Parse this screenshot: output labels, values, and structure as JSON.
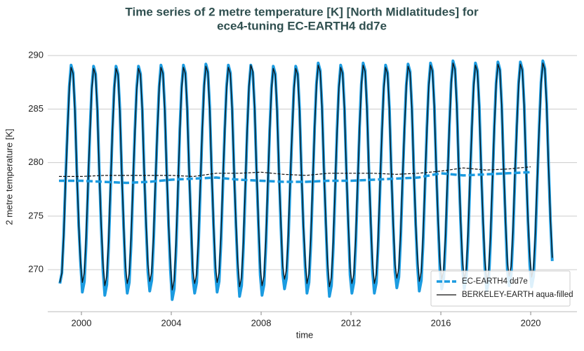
{
  "chart_data": {
    "type": "line",
    "title": [
      "Time series of 2 metre temperature [K] [North Midlatitudes] for",
      "ece4-tuning EC-EARTH4 dd7e"
    ],
    "xlabel": "time",
    "ylabel": "2 metre temperature [K]",
    "xlim": [
      1998.5,
      2022.06
    ],
    "ylim": [
      266.07,
      291.25
    ],
    "xticks": [
      2000,
      2004,
      2008,
      2012,
      2016,
      2020
    ],
    "yticks": [
      270,
      275,
      280,
      285,
      290
    ],
    "grid": true,
    "legend": "lower right",
    "x": [
      1999.04,
      1999.13,
      1999.21,
      1999.29,
      1999.38,
      1999.46,
      1999.54,
      1999.63,
      1999.71,
      1999.79,
      1999.88,
      1999.96,
      2000.04,
      2000.13,
      2000.21,
      2000.29,
      2000.38,
      2000.46,
      2000.54,
      2000.63,
      2000.71,
      2000.79,
      2000.88,
      2000.96,
      2001.04,
      2001.13,
      2001.21,
      2001.29,
      2001.38,
      2001.46,
      2001.54,
      2001.63,
      2001.71,
      2001.79,
      2001.88,
      2001.96,
      2002.04,
      2002.13,
      2002.21,
      2002.29,
      2002.38,
      2002.46,
      2002.54,
      2002.63,
      2002.71,
      2002.79,
      2002.88,
      2002.96,
      2003.04,
      2003.13,
      2003.21,
      2003.29,
      2003.38,
      2003.46,
      2003.54,
      2003.63,
      2003.71,
      2003.79,
      2003.88,
      2003.96,
      2004.04,
      2004.13,
      2004.21,
      2004.29,
      2004.38,
      2004.46,
      2004.54,
      2004.63,
      2004.71,
      2004.79,
      2004.88,
      2004.96,
      2005.04,
      2005.13,
      2005.21,
      2005.29,
      2005.38,
      2005.46,
      2005.54,
      2005.63,
      2005.71,
      2005.79,
      2005.88,
      2005.96,
      2006.04,
      2006.13,
      2006.21,
      2006.29,
      2006.38,
      2006.46,
      2006.54,
      2006.63,
      2006.71,
      2006.79,
      2006.88,
      2006.96,
      2007.04,
      2007.13,
      2007.21,
      2007.29,
      2007.38,
      2007.46,
      2007.54,
      2007.63,
      2007.71,
      2007.79,
      2007.88,
      2007.96,
      2008.04,
      2008.13,
      2008.21,
      2008.29,
      2008.38,
      2008.46,
      2008.54,
      2008.63,
      2008.71,
      2008.79,
      2008.88,
      2008.96,
      2009.04,
      2009.13,
      2009.21,
      2009.29,
      2009.38,
      2009.46,
      2009.54,
      2009.63,
      2009.71,
      2009.79,
      2009.88,
      2009.96,
      2010.04,
      2010.13,
      2010.21,
      2010.29,
      2010.38,
      2010.46,
      2010.54,
      2010.63,
      2010.71,
      2010.79,
      2010.88,
      2010.96,
      2011.04,
      2011.13,
      2011.21,
      2011.29,
      2011.38,
      2011.46,
      2011.54,
      2011.63,
      2011.71,
      2011.79,
      2011.88,
      2011.96,
      2012.04,
      2012.13,
      2012.21,
      2012.29,
      2012.38,
      2012.46,
      2012.54,
      2012.63,
      2012.71,
      2012.79,
      2012.88,
      2012.96,
      2013.04,
      2013.13,
      2013.21,
      2013.29,
      2013.38,
      2013.46,
      2013.54,
      2013.63,
      2013.71,
      2013.79,
      2013.88,
      2013.96,
      2014.04,
      2014.13,
      2014.21,
      2014.29,
      2014.38,
      2014.46,
      2014.54,
      2014.63,
      2014.71,
      2014.79,
      2014.88,
      2014.96,
      2015.04,
      2015.13,
      2015.21,
      2015.29,
      2015.38,
      2015.46,
      2015.54,
      2015.63,
      2015.71,
      2015.79,
      2015.88,
      2015.96,
      2016.04,
      2016.13,
      2016.21,
      2016.29,
      2016.38,
      2016.46,
      2016.54,
      2016.63,
      2016.71,
      2016.79,
      2016.88,
      2016.96,
      2017.04,
      2017.13,
      2017.21,
      2017.29,
      2017.38,
      2017.46,
      2017.54,
      2017.63,
      2017.71,
      2017.79,
      2017.88,
      2017.96,
      2018.04,
      2018.13,
      2018.21,
      2018.29,
      2018.38,
      2018.46,
      2018.54,
      2018.63,
      2018.71,
      2018.79,
      2018.88,
      2018.96,
      2019.04,
      2019.13,
      2019.21,
      2019.29,
      2019.38,
      2019.46,
      2019.54,
      2019.63,
      2019.71,
      2019.79,
      2019.88,
      2019.96,
      2020.04,
      2020.13,
      2020.21,
      2020.29,
      2020.38,
      2020.46,
      2020.54,
      2020.63,
      2020.71,
      2020.79,
      2020.88,
      2020.96
    ],
    "series": [
      {
        "name": "EC-EARTH4 dd7e",
        "color": "#1b9be0",
        "width": 4,
        "dash": true,
        "values": [
          268.7,
          269.7,
          273.2,
          278.2,
          283.1,
          287.1,
          289.1,
          288.4,
          285.1,
          279.6,
          274.1,
          270.7,
          267.9,
          268.9,
          272.4,
          277.4,
          283.0,
          287.0,
          289.0,
          288.3,
          285.0,
          279.5,
          274.0,
          269.9,
          267.6,
          268.6,
          272.1,
          277.1,
          283.0,
          287.0,
          289.0,
          288.3,
          285.0,
          279.5,
          274.0,
          269.6,
          267.8,
          268.8,
          272.3,
          277.3,
          283.0,
          287.0,
          289.0,
          288.3,
          285.0,
          279.5,
          274.0,
          269.8,
          268.0,
          269.0,
          272.5,
          277.5,
          283.1,
          287.1,
          289.1,
          288.4,
          285.1,
          279.6,
          274.1,
          270.0,
          267.2,
          268.2,
          271.7,
          276.7,
          283.1,
          287.1,
          289.1,
          288.4,
          285.1,
          279.6,
          274.1,
          269.2,
          267.8,
          268.8,
          272.3,
          277.3,
          283.2,
          287.2,
          289.2,
          288.5,
          285.2,
          279.7,
          274.2,
          269.8,
          267.9,
          268.9,
          272.4,
          277.4,
          283.1,
          287.1,
          289.1,
          288.4,
          285.1,
          279.6,
          274.1,
          269.9,
          267.5,
          268.5,
          272.0,
          277.0,
          283.1,
          287.1,
          289.1,
          288.4,
          285.1,
          279.6,
          274.1,
          269.5,
          267.6,
          268.6,
          272.1,
          277.1,
          283.0,
          287.0,
          289.0,
          288.3,
          285.0,
          279.5,
          274.0,
          269.6,
          268.2,
          269.2,
          272.7,
          277.7,
          283.0,
          287.0,
          289.0,
          288.3,
          285.0,
          279.5,
          274.0,
          270.2,
          267.8,
          268.8,
          272.3,
          277.3,
          283.3,
          287.3,
          289.3,
          288.6,
          285.3,
          279.8,
          274.3,
          269.8,
          267.5,
          268.5,
          272.0,
          277.0,
          283.1,
          287.1,
          289.1,
          288.4,
          285.1,
          279.6,
          274.1,
          269.5,
          267.8,
          268.8,
          272.3,
          277.3,
          283.3,
          287.3,
          289.3,
          288.6,
          285.3,
          279.8,
          274.3,
          269.8,
          267.8,
          268.8,
          272.3,
          277.3,
          283.1,
          287.1,
          289.1,
          288.4,
          285.1,
          279.6,
          274.1,
          269.8,
          268.3,
          269.3,
          272.8,
          277.8,
          283.2,
          287.2,
          289.2,
          288.5,
          285.2,
          279.7,
          274.2,
          270.3,
          268.0,
          269.0,
          272.5,
          277.5,
          283.3,
          287.3,
          289.3,
          288.6,
          285.3,
          279.8,
          274.3,
          270.0,
          268.2,
          269.2,
          272.7,
          277.7,
          283.5,
          287.5,
          289.5,
          288.8,
          285.5,
          280.0,
          274.5,
          270.2,
          268.2,
          269.2,
          272.7,
          277.7,
          283.3,
          287.3,
          289.3,
          288.6,
          285.3,
          279.8,
          274.3,
          270.2,
          268.0,
          269.0,
          272.5,
          277.5,
          283.4,
          287.4,
          289.4,
          288.7,
          285.4,
          279.9,
          274.4,
          270.0,
          268.5,
          269.5,
          273.0,
          278.0,
          283.4,
          287.4,
          289.4,
          288.7,
          285.4,
          279.9,
          274.4,
          270.5,
          268.4,
          269.4,
          272.9,
          277.9,
          283.5,
          287.5,
          289.5,
          288.8,
          285.5,
          280.0,
          274.5,
          270.8
        ]
      },
      {
        "name": "BERKELEY-EARTH aqua-filled",
        "color": "#111111",
        "width": 1.3,
        "values": [
          268.8,
          269.7,
          273.1,
          278.0,
          282.9,
          286.9,
          288.9,
          288.3,
          284.9,
          279.4,
          274.3,
          270.6,
          268.8,
          269.7,
          273.1,
          278.0,
          282.8,
          286.8,
          288.8,
          288.2,
          284.8,
          279.3,
          274.2,
          270.6,
          268.5,
          269.4,
          272.8,
          277.7,
          282.8,
          286.8,
          288.8,
          288.2,
          284.8,
          279.3,
          274.2,
          270.3,
          268.7,
          269.6,
          273.0,
          277.9,
          282.8,
          286.8,
          288.8,
          288.2,
          284.8,
          279.3,
          274.2,
          270.5,
          268.9,
          269.8,
          273.2,
          278.1,
          282.9,
          286.9,
          288.9,
          288.3,
          284.9,
          279.4,
          274.3,
          270.7,
          268.1,
          269.0,
          272.4,
          277.3,
          282.9,
          286.9,
          288.9,
          288.3,
          284.9,
          279.4,
          274.3,
          269.9,
          268.7,
          269.6,
          273.0,
          277.9,
          283.0,
          287.0,
          289.0,
          288.4,
          285.0,
          279.5,
          274.4,
          270.5,
          268.8,
          269.7,
          273.1,
          278.0,
          282.9,
          286.9,
          288.9,
          288.3,
          284.9,
          279.4,
          274.3,
          270.6,
          268.4,
          269.3,
          272.7,
          277.6,
          283.1,
          287.1,
          289.1,
          288.5,
          285.1,
          279.6,
          274.5,
          270.2,
          268.5,
          269.4,
          272.8,
          277.7,
          282.8,
          286.8,
          288.8,
          288.2,
          284.8,
          279.3,
          274.2,
          270.3,
          269.1,
          270.0,
          273.4,
          278.3,
          282.8,
          286.8,
          288.8,
          288.2,
          284.8,
          279.3,
          274.2,
          270.9,
          268.7,
          269.6,
          273.0,
          277.9,
          283.1,
          287.1,
          289.1,
          288.5,
          285.1,
          279.6,
          274.5,
          270.5,
          268.4,
          269.3,
          272.7,
          277.6,
          282.9,
          286.9,
          288.9,
          288.3,
          284.9,
          279.4,
          274.3,
          270.2,
          268.7,
          269.6,
          273.0,
          277.9,
          283.1,
          287.1,
          289.1,
          288.5,
          285.1,
          279.6,
          274.5,
          270.5,
          268.7,
          269.6,
          273.0,
          277.9,
          282.9,
          286.9,
          288.9,
          288.3,
          284.9,
          279.4,
          274.3,
          270.5,
          269.2,
          270.1,
          273.5,
          278.4,
          283.0,
          287.0,
          289.0,
          288.4,
          285.0,
          279.5,
          274.4,
          271.0,
          268.9,
          269.8,
          273.2,
          278.1,
          283.1,
          287.1,
          289.1,
          288.5,
          285.1,
          279.6,
          274.5,
          270.7,
          269.1,
          270.0,
          273.4,
          278.3,
          283.3,
          287.3,
          289.3,
          288.7,
          285.3,
          279.8,
          274.7,
          270.9,
          269.1,
          270.0,
          273.4,
          278.3,
          283.1,
          287.1,
          289.1,
          288.5,
          285.1,
          279.6,
          274.5,
          270.9,
          268.9,
          269.8,
          273.2,
          278.1,
          283.2,
          287.2,
          289.2,
          288.6,
          285.2,
          279.7,
          274.6,
          270.7,
          269.4,
          270.3,
          273.7,
          278.6,
          283.2,
          287.2,
          289.2,
          288.6,
          285.2,
          279.7,
          274.6,
          271.2,
          269.3,
          270.2,
          273.6,
          278.5,
          283.3,
          287.3,
          289.3,
          288.7,
          285.3,
          279.8,
          274.7,
          271.1
        ]
      },
      {
        "color": "#1b9be0",
        "width": 3.5,
        "dash": true,
        "x": [
          1999,
          2000,
          2001,
          2002,
          2003,
          2004,
          2005,
          2006,
          2007,
          2008,
          2009,
          2010,
          2011,
          2012,
          2013,
          2014,
          2015,
          2016,
          2017,
          2018,
          2019,
          2020
        ],
        "values": [
          278.3,
          278.3,
          278.2,
          278.1,
          278.2,
          278.4,
          278.5,
          278.6,
          278.4,
          278.3,
          278.2,
          278.2,
          278.3,
          278.3,
          278.4,
          278.5,
          278.6,
          279.0,
          278.8,
          278.9,
          279.0,
          279.1
        ]
      },
      {
        "color": "#111111",
        "width": 1.2,
        "dash": true,
        "x": [
          1999,
          2000,
          2001,
          2002,
          2003,
          2004,
          2005,
          2006,
          2007,
          2008,
          2009,
          2010,
          2011,
          2012,
          2013,
          2014,
          2015,
          2016,
          2017,
          2018,
          2019,
          2020
        ],
        "values": [
          278.7,
          278.7,
          278.8,
          278.8,
          278.8,
          278.8,
          278.7,
          279.0,
          279.0,
          279.1,
          278.9,
          278.8,
          279.0,
          279.0,
          279.0,
          278.9,
          279.0,
          279.2,
          279.5,
          279.3,
          279.4,
          279.6
        ]
      }
    ]
  }
}
